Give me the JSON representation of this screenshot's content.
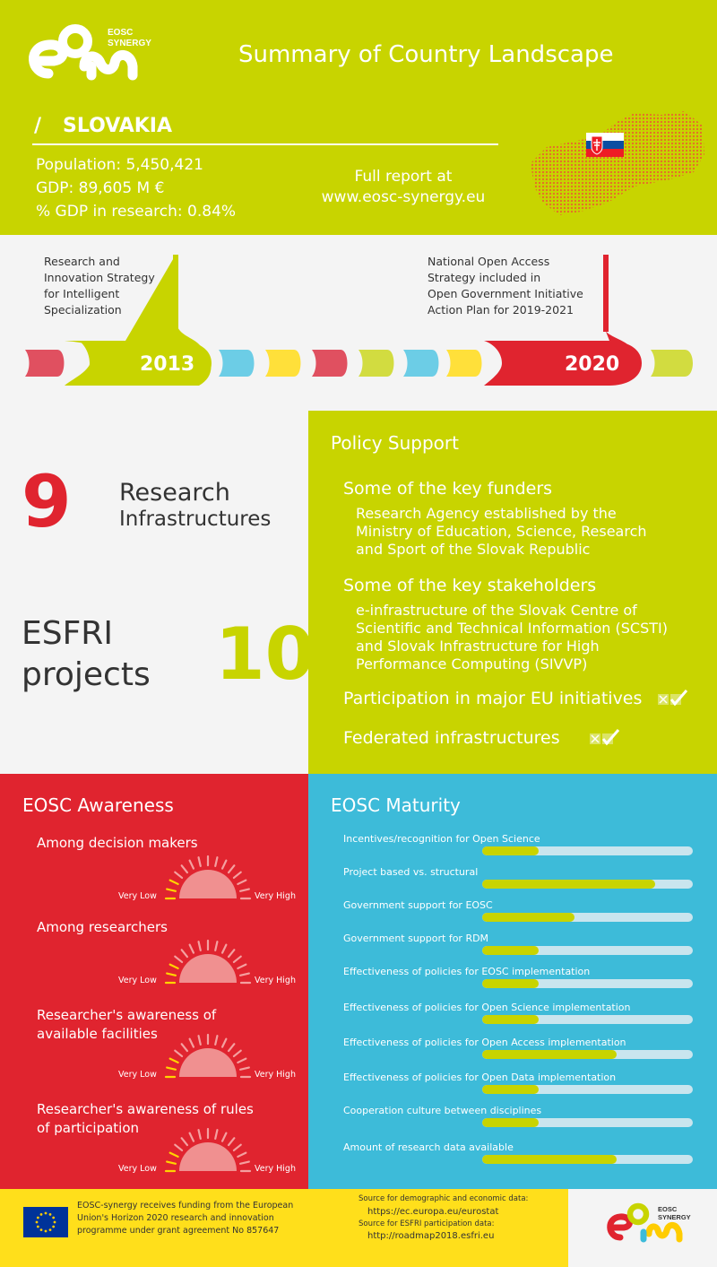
{
  "header": {
    "logo_text_1": "EOSC",
    "logo_text_2": "SYNERGY",
    "title": "Summary of Country Landscape",
    "slash": "/",
    "country": "SLOVAKIA",
    "population": "Population: 5,450,421",
    "gdp": "GDP: 89,605 M €",
    "gdp_research": "% GDP in research: 0.84%",
    "report_line_1": "Full report at",
    "report_line_2": "www.eosc-synergy.eu"
  },
  "timeline": {
    "event_2013_lines": [
      "Research and",
      "Innovation Strategy",
      "for Intelligent",
      "Specialization"
    ],
    "event_2020_lines": [
      "National Open Access",
      "Strategy included in",
      "Open Government Initiative",
      "Action Plan for 2019-2021"
    ],
    "year_1": "2013",
    "year_2": "2020"
  },
  "infrastructures": {
    "ri_count": "9",
    "ri_label_1": "Research",
    "ri_label_2": "Infrastructures",
    "esfri_label_1": "ESFRI",
    "esfri_label_2": "projects",
    "esfri_count": "10"
  },
  "policy": {
    "title": "Policy Support",
    "funders_heading": "Some of the key funders",
    "funders_lines": [
      "Research Agency established by the",
      "Ministry of Education, Science, Research",
      "and Sport of the Slovak Republic"
    ],
    "stakeholders_heading": "Some of the key stakeholders",
    "stakeholders_lines": [
      "e-infrastructure of the Slovak Centre of",
      "Scientific and Technical Information (SCSTI)",
      "and Slovak Infrastructure for High",
      "Performance Computing (SIVVP)"
    ],
    "eu_initiatives": "Participation in major EU initiatives",
    "federated": "Federated infrastructures",
    "eu_initiatives_checked": true,
    "federated_checked": true
  },
  "awareness": {
    "title": "EOSC Awareness",
    "low_label": "Very Low",
    "high_label": "Very High",
    "items": [
      {
        "lines": [
          "Among decision makers"
        ],
        "level": 0.2
      },
      {
        "lines": [
          "Among researchers"
        ],
        "level": 0.2
      },
      {
        "lines": [
          "Researcher's awareness of",
          "available facilities"
        ],
        "level": 0.2
      },
      {
        "lines": [
          "Researcher's awareness of rules",
          "of participation"
        ],
        "level": 0.2
      }
    ]
  },
  "maturity": {
    "title": "EOSC Maturity",
    "items": [
      {
        "label": "Incentives/recognition for Open Science",
        "value": 0.27
      },
      {
        "label": "Project based vs. structural",
        "value": 0.82
      },
      {
        "label": "Government support for EOSC",
        "value": 0.44
      },
      {
        "label": "Government support for RDM",
        "value": 0.27
      },
      {
        "label": "Effectiveness of policies for EOSC implementation",
        "value": 0.27
      },
      {
        "label": "Effectiveness of policies for Open Science implementation",
        "value": 0.27
      },
      {
        "label": "Effectiveness of policies for Open Access implementation",
        "value": 0.64
      },
      {
        "label": "Effectiveness of policies for Open Data implementation",
        "value": 0.27
      },
      {
        "label": "Cooperation culture between disciplines",
        "value": 0.27
      },
      {
        "label": "Amount of research data available",
        "value": 0.64
      }
    ]
  },
  "footer": {
    "funding_lines": [
      "EOSC-synergy receives funding from the European",
      "Union's Horizon 2020 research and innovation",
      "programme under grant agreement No 857647"
    ],
    "source_demo_label": "Source for demographic and economic data:",
    "source_demo_url": "https://ec.europa.eu/eurostat",
    "source_esfri_label": "Source for ESFRI participation data:",
    "source_esfri_url": "http://roadmap2018.esfri.eu",
    "logo_text_1": "EOSC",
    "logo_text_2": "SYNERGY"
  },
  "colors": {
    "lime": "#c8d400",
    "red": "#e0242f",
    "cyan": "#3dbbd9",
    "yellow": "#ffdf1b",
    "gray": "#f4f4f4"
  }
}
